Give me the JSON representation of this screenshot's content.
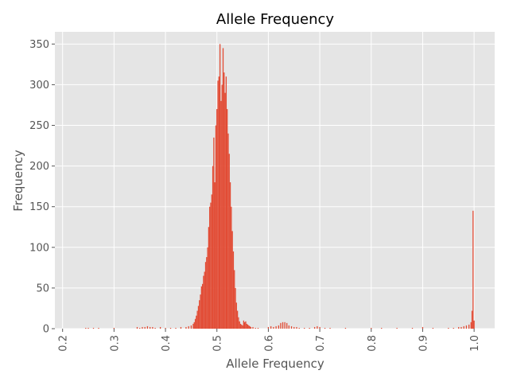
{
  "chart_data": {
    "type": "bar",
    "title": "Allele Frequency",
    "xlabel": "Allele Frequency",
    "ylabel": "Frequency",
    "xlim": [
      0.185,
      1.04
    ],
    "ylim": [
      0,
      365
    ],
    "grid": true,
    "bar_color": "#E24A33",
    "background_color": "#E5E5E5",
    "x_ticks": [
      0.2,
      0.3,
      0.4,
      0.5,
      0.6,
      0.7,
      0.8,
      0.9,
      1.0
    ],
    "x_tick_labels": [
      "0.2",
      "0.3",
      "0.4",
      "0.5",
      "0.6",
      "0.7",
      "0.8",
      "0.9",
      "1.0"
    ],
    "y_ticks": [
      0,
      50,
      100,
      150,
      200,
      250,
      300,
      350
    ],
    "y_tick_labels": [
      "0",
      "50",
      "100",
      "150",
      "200",
      "250",
      "300",
      "350"
    ],
    "bin_width": 0.002,
    "series": [
      {
        "points": [
          [
            0.245,
            1
          ],
          [
            0.25,
            1
          ],
          [
            0.26,
            1
          ],
          [
            0.27,
            1
          ],
          [
            0.3,
            1
          ],
          [
            0.345,
            2
          ],
          [
            0.35,
            1
          ],
          [
            0.355,
            2
          ],
          [
            0.36,
            2
          ],
          [
            0.365,
            3
          ],
          [
            0.37,
            2
          ],
          [
            0.375,
            2
          ],
          [
            0.38,
            1
          ],
          [
            0.39,
            2
          ],
          [
            0.4,
            1
          ],
          [
            0.41,
            1
          ],
          [
            0.42,
            1
          ],
          [
            0.43,
            2
          ],
          [
            0.44,
            2
          ],
          [
            0.445,
            3
          ],
          [
            0.45,
            4
          ],
          [
            0.454,
            6
          ],
          [
            0.456,
            8
          ],
          [
            0.458,
            12
          ],
          [
            0.46,
            16
          ],
          [
            0.462,
            22
          ],
          [
            0.464,
            28
          ],
          [
            0.466,
            35
          ],
          [
            0.468,
            42
          ],
          [
            0.47,
            52
          ],
          [
            0.472,
            55
          ],
          [
            0.474,
            65
          ],
          [
            0.476,
            70
          ],
          [
            0.478,
            82
          ],
          [
            0.48,
            88
          ],
          [
            0.482,
            100
          ],
          [
            0.484,
            125
          ],
          [
            0.486,
            150
          ],
          [
            0.488,
            155
          ],
          [
            0.49,
            165
          ],
          [
            0.492,
            200
          ],
          [
            0.494,
            235
          ],
          [
            0.496,
            180
          ],
          [
            0.498,
            250
          ],
          [
            0.5,
            270
          ],
          [
            0.502,
            305
          ],
          [
            0.504,
            310
          ],
          [
            0.506,
            350
          ],
          [
            0.508,
            280
          ],
          [
            0.51,
            300
          ],
          [
            0.512,
            345
          ],
          [
            0.514,
            315
          ],
          [
            0.516,
            290
          ],
          [
            0.518,
            310
          ],
          [
            0.52,
            270
          ],
          [
            0.522,
            240
          ],
          [
            0.524,
            215
          ],
          [
            0.526,
            180
          ],
          [
            0.528,
            150
          ],
          [
            0.53,
            120
          ],
          [
            0.532,
            95
          ],
          [
            0.534,
            72
          ],
          [
            0.536,
            50
          ],
          [
            0.538,
            32
          ],
          [
            0.54,
            22
          ],
          [
            0.542,
            14
          ],
          [
            0.544,
            9
          ],
          [
            0.546,
            6
          ],
          [
            0.548,
            5
          ],
          [
            0.55,
            4
          ],
          [
            0.552,
            10
          ],
          [
            0.554,
            8
          ],
          [
            0.556,
            9
          ],
          [
            0.558,
            6
          ],
          [
            0.56,
            5
          ],
          [
            0.562,
            4
          ],
          [
            0.564,
            3
          ],
          [
            0.566,
            2
          ],
          [
            0.57,
            2
          ],
          [
            0.575,
            1
          ],
          [
            0.58,
            1
          ],
          [
            0.6,
            2
          ],
          [
            0.605,
            3
          ],
          [
            0.61,
            2
          ],
          [
            0.615,
            3
          ],
          [
            0.62,
            4
          ],
          [
            0.624,
            7
          ],
          [
            0.628,
            8
          ],
          [
            0.632,
            8
          ],
          [
            0.636,
            7
          ],
          [
            0.64,
            4
          ],
          [
            0.645,
            3
          ],
          [
            0.65,
            2
          ],
          [
            0.655,
            2
          ],
          [
            0.66,
            1
          ],
          [
            0.67,
            1
          ],
          [
            0.68,
            1
          ],
          [
            0.69,
            2
          ],
          [
            0.695,
            3
          ],
          [
            0.7,
            2
          ],
          [
            0.71,
            1
          ],
          [
            0.72,
            1
          ],
          [
            0.75,
            1
          ],
          [
            0.8,
            1
          ],
          [
            0.82,
            1
          ],
          [
            0.85,
            1
          ],
          [
            0.88,
            1
          ],
          [
            0.9,
            2
          ],
          [
            0.92,
            1
          ],
          [
            0.95,
            1
          ],
          [
            0.96,
            1
          ],
          [
            0.97,
            2
          ],
          [
            0.975,
            2
          ],
          [
            0.98,
            3
          ],
          [
            0.985,
            4
          ],
          [
            0.99,
            5
          ],
          [
            0.994,
            8
          ],
          [
            0.996,
            22
          ],
          [
            0.998,
            145
          ],
          [
            1.0,
            10
          ]
        ]
      }
    ]
  }
}
